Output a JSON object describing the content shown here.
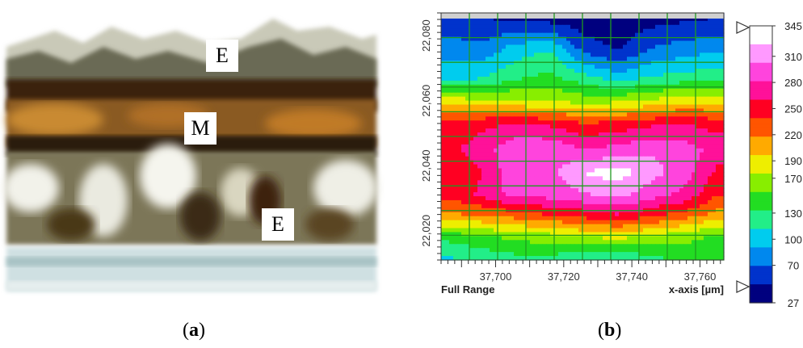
{
  "panel_a": {
    "labels": [
      "E",
      "M",
      "E"
    ],
    "caption": "a"
  },
  "panel_b": {
    "caption": "b",
    "full_range_label": "Full Range",
    "x_axis_label": "x-axis [µm]",
    "colors": [
      "#00007f",
      "#0033cc",
      "#0088ee",
      "#00ccee",
      "#22ee88",
      "#22dd22",
      "#88ee00",
      "#eeee00",
      "#ffaa00",
      "#ff5500",
      "#ff0022",
      "#ff1199",
      "#ff44dd",
      "#ff99ff",
      "#ffffff"
    ]
  },
  "chart_data": {
    "type": "heatmap",
    "x_ticks": [
      "37,700",
      "37,720",
      "37,740",
      "37,760"
    ],
    "x_tick_values": [
      37700,
      37720,
      37740,
      37760
    ],
    "y_ticks": [
      "22,080",
      "22,060",
      "22,040",
      "22,020"
    ],
    "y_tick_values": [
      22080,
      22060,
      22040,
      22020
    ],
    "xlim": [
      37684,
      37767
    ],
    "ylim": [
      22011,
      22087
    ],
    "xlabel": "x-axis [µm]",
    "colorbar_ticks": [
      345,
      310,
      280,
      250,
      220,
      190,
      170,
      130,
      100,
      70,
      27
    ],
    "colorbar_range": [
      27,
      345
    ],
    "x": [
      37686,
      37696,
      37706,
      37716,
      37726,
      37736,
      37746,
      37756,
      37765
    ],
    "y": [
      22085,
      22076,
      22067,
      22060,
      22053,
      22045,
      22038,
      22031,
      22025,
      22018,
      22012
    ],
    "z": [
      [
        55,
        50,
        45,
        40,
        35,
        35,
        40,
        45,
        50
      ],
      [
        80,
        75,
        100,
        110,
        60,
        45,
        70,
        80,
        85
      ],
      [
        105,
        110,
        130,
        140,
        120,
        100,
        115,
        120,
        125
      ],
      [
        185,
        180,
        175,
        175,
        165,
        170,
        180,
        190,
        190
      ],
      [
        245,
        255,
        260,
        255,
        240,
        245,
        255,
        260,
        250
      ],
      [
        255,
        270,
        300,
        300,
        280,
        290,
        300,
        290,
        275
      ],
      [
        240,
        260,
        300,
        295,
        325,
        335,
        310,
        290,
        255
      ],
      [
        245,
        265,
        290,
        290,
        300,
        310,
        290,
        275,
        240
      ],
      [
        215,
        220,
        230,
        240,
        250,
        260,
        245,
        230,
        210
      ],
      [
        140,
        150,
        160,
        165,
        175,
        180,
        170,
        160,
        150
      ],
      [
        110,
        120,
        130,
        130,
        120,
        120,
        130,
        140,
        150
      ]
    ]
  }
}
